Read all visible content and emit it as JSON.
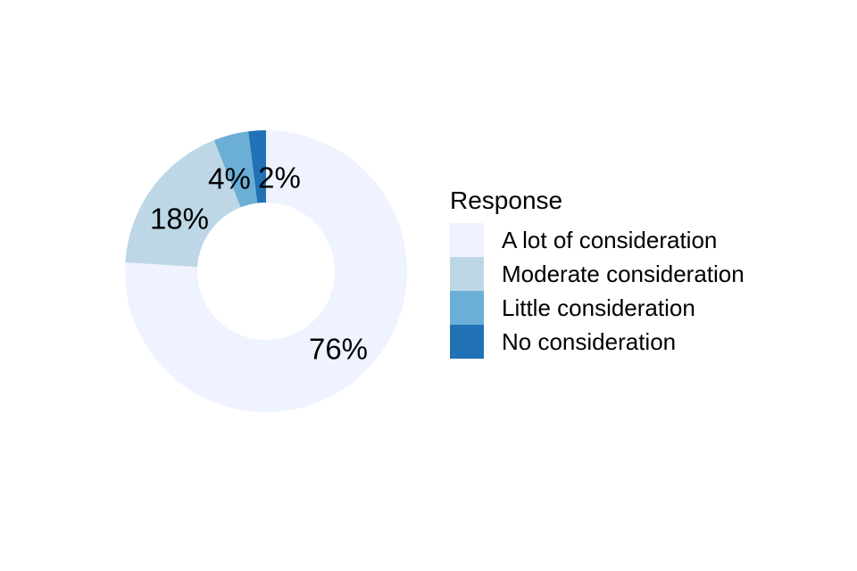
{
  "chart_data": {
    "type": "pie",
    "variant": "donut",
    "legend_title": "Response",
    "categories": [
      "A lot of consideration",
      "Moderate consideration",
      "Little consideration",
      "No consideration"
    ],
    "values": [
      76,
      18,
      4,
      2
    ],
    "labels": [
      "76%",
      "18%",
      "4%",
      "2%"
    ],
    "colors": [
      "#EFF3FF",
      "#BDD7E7",
      "#6BAED6",
      "#2171B5"
    ],
    "start_angle_deg": 0,
    "direction": "clockwise",
    "inner_radius_ratio": 0.49,
    "legend_position": "right",
    "background": "#FFFFFF",
    "text_color": "#000000"
  }
}
